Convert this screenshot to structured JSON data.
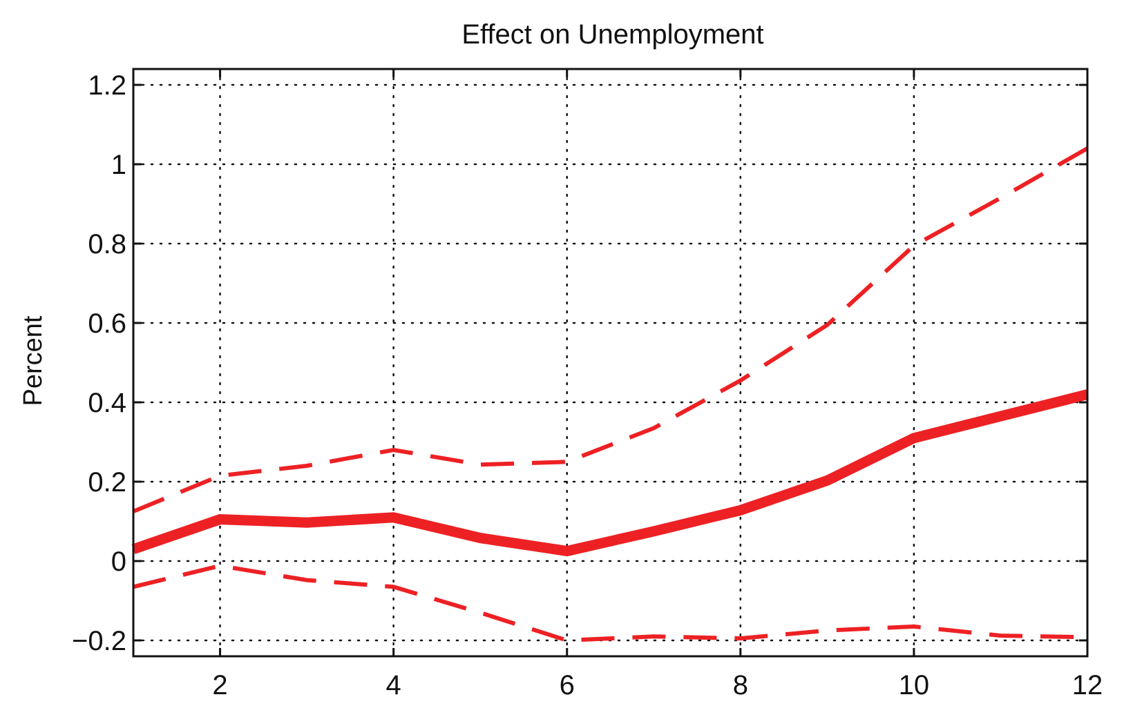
{
  "chart_data": {
    "type": "line",
    "title": "Effect on Unemployment",
    "xlabel": "",
    "ylabel": "Percent",
    "xlim": [
      1,
      12
    ],
    "ylim": [
      -0.24,
      1.24
    ],
    "x_ticks": [
      2,
      4,
      6,
      8,
      10,
      12
    ],
    "x_tick_labels": [
      "2",
      "4",
      "6",
      "8",
      "10",
      "12"
    ],
    "y_ticks": [
      -0.2,
      0,
      0.2,
      0.4,
      0.6,
      0.8,
      1,
      1.2
    ],
    "y_tick_labels": [
      "−0.2",
      "0",
      "0.2",
      "0.4",
      "0.6",
      "0.8",
      "1",
      "1.2"
    ],
    "grid": true,
    "x": [
      1,
      2,
      3,
      4,
      5,
      6,
      7,
      8,
      9,
      10,
      11,
      12
    ],
    "series": [
      {
        "style": "solid",
        "color": "#ED2124",
        "values": [
          0.03,
          0.105,
          0.097,
          0.11,
          0.058,
          0.025,
          0.075,
          0.128,
          0.203,
          0.31,
          0.365,
          0.42
        ]
      },
      {
        "style": "dashed",
        "color": "#ED2124",
        "values": [
          0.125,
          0.215,
          0.24,
          0.28,
          0.243,
          0.25,
          0.335,
          0.455,
          0.595,
          0.795,
          0.915,
          1.04
        ]
      },
      {
        "style": "dashed",
        "color": "#ED2124",
        "values": [
          -0.065,
          -0.012,
          -0.048,
          -0.065,
          -0.13,
          -0.2,
          -0.19,
          -0.195,
          -0.175,
          -0.165,
          -0.188,
          -0.192
        ]
      }
    ]
  }
}
